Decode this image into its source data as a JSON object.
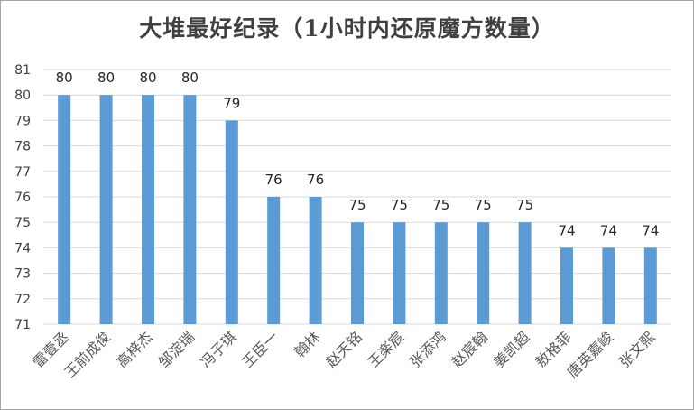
{
  "chart_data": {
    "type": "bar",
    "title": "大堆最好纪录（1小时内还原魔方数量）",
    "xlabel": "",
    "ylabel": "",
    "categories": [
      "雷壹丞",
      "王前成俊",
      "高梓杰",
      "邹淀瑞",
      "冯子琪",
      "王臣一",
      "翰林",
      "赵天铭",
      "王楽宸",
      "张添鸿",
      "赵宸翰",
      "姜凯超",
      "敖格菲",
      "唐英嘉峻",
      "张文熙"
    ],
    "values": [
      80,
      80,
      80,
      80,
      79,
      76,
      76,
      75,
      75,
      75,
      75,
      75,
      74,
      74,
      74
    ],
    "ylim": [
      71,
      81
    ],
    "yticks": [
      71,
      72,
      73,
      74,
      75,
      76,
      77,
      78,
      79,
      80,
      81
    ],
    "grid": true,
    "legend": "none",
    "bar_color": "#5b9bd5"
  }
}
